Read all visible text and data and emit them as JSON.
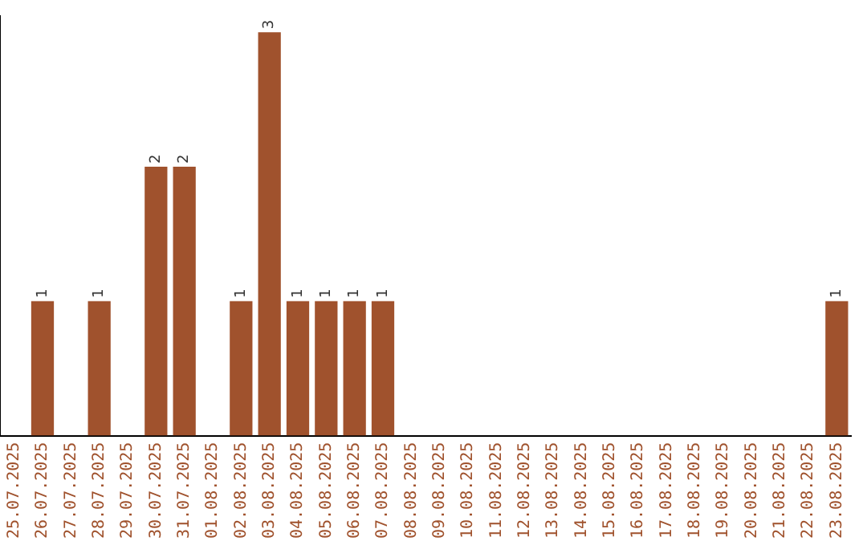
{
  "chart_data": {
    "type": "bar",
    "categories": [
      "25.07.2025",
      "26.07.2025",
      "27.07.2025",
      "28.07.2025",
      "29.07.2025",
      "30.07.2025",
      "31.07.2025",
      "01.08.2025",
      "02.08.2025",
      "03.08.2025",
      "04.08.2025",
      "05.08.2025",
      "06.08.2025",
      "07.08.2025",
      "08.08.2025",
      "09.08.2025",
      "10.08.2025",
      "11.08.2025",
      "12.08.2025",
      "13.08.2025",
      "14.08.2025",
      "15.08.2025",
      "16.08.2025",
      "17.08.2025",
      "18.08.2025",
      "19.08.2025",
      "20.08.2025",
      "21.08.2025",
      "22.08.2025",
      "23.08.2025"
    ],
    "values": [
      0,
      1,
      0,
      1,
      0,
      2,
      2,
      0,
      1,
      3,
      1,
      1,
      1,
      1,
      0,
      0,
      0,
      0,
      0,
      0,
      0,
      0,
      0,
      0,
      0,
      0,
      0,
      0,
      0,
      1
    ],
    "value_labels": [
      null,
      "1",
      null,
      "1",
      null,
      "2",
      "2",
      null,
      "1",
      "3",
      "1",
      "1",
      "1",
      "1",
      null,
      null,
      null,
      null,
      null,
      null,
      null,
      null,
      null,
      null,
      null,
      null,
      null,
      null,
      null,
      "1"
    ],
    "color": "#a0522d",
    "ylim": [
      0,
      3.12
    ],
    "grid": false,
    "legend": false,
    "tick_labels": "x"
  }
}
